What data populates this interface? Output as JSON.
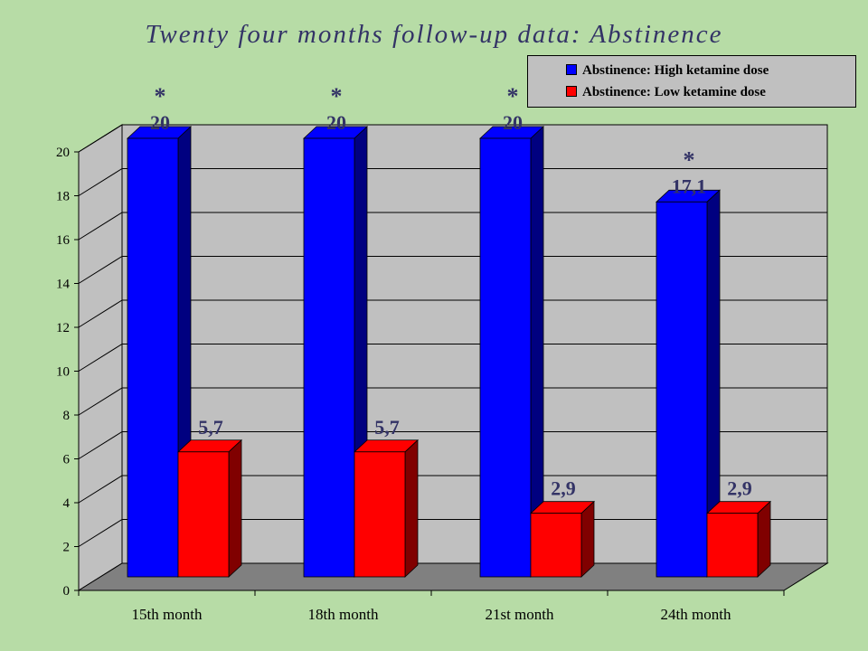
{
  "slide": {
    "background": "#b7dca6"
  },
  "chart_data": {
    "type": "bar",
    "title": "Twenty four months follow-up data: Abstinence",
    "categories": [
      "15th month",
      "18th month",
      "21st month",
      "24th month"
    ],
    "series": [
      {
        "name": "Abstinence: High ketamine dose",
        "color": "#0000ff",
        "side_color": "#000080",
        "values": [
          20,
          20,
          20,
          17.1
        ],
        "labels": [
          "20",
          "20",
          "20",
          "17,1"
        ]
      },
      {
        "name": "Abstinence: Low ketamine dose",
        "color": "#ff0000",
        "side_color": "#800000",
        "values": [
          5.7,
          5.7,
          2.9,
          2.9
        ],
        "labels": [
          "5,7",
          "5,7",
          "2,9",
          "2,9"
        ]
      }
    ],
    "significance_marker": "*",
    "significance": [
      true,
      true,
      true,
      true
    ],
    "ylim": [
      0,
      20
    ],
    "yticks": [
      0,
      2,
      4,
      6,
      8,
      10,
      12,
      14,
      16,
      18,
      20
    ],
    "grid": true,
    "legend_position": "top-right",
    "plot_wall_color": "#c0c0c0",
    "plot_floor_color": "#808080"
  }
}
